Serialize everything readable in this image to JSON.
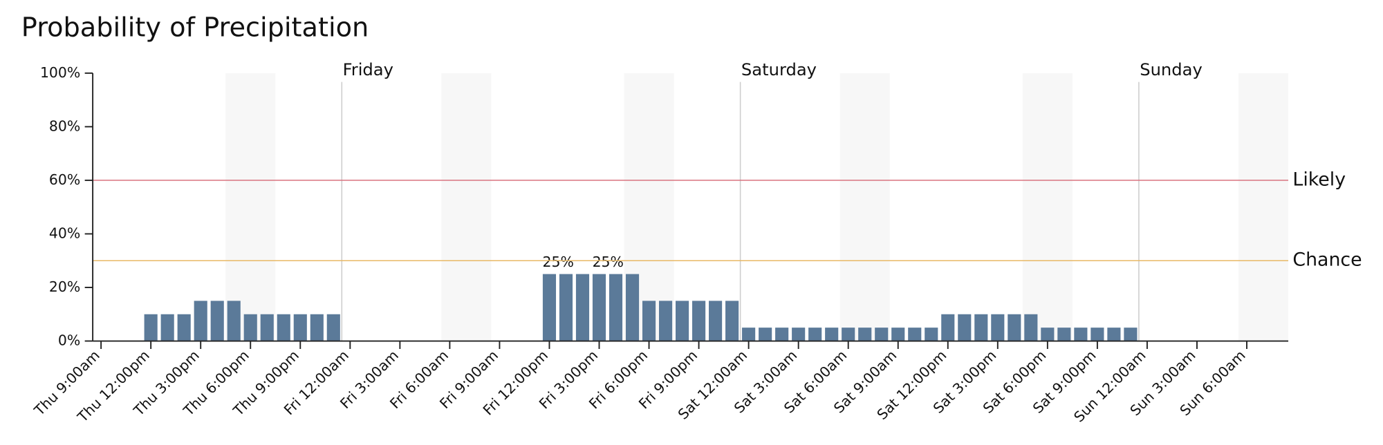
{
  "chart_data": {
    "type": "bar",
    "title": "Probability of Precipitation",
    "categories": [
      "Thu 9:00am",
      null,
      null,
      "Thu 12:00pm",
      null,
      null,
      "Thu 3:00pm",
      null,
      null,
      "Thu 6:00pm",
      null,
      null,
      "Thu 9:00pm",
      null,
      null,
      "Fri 12:00am",
      null,
      null,
      "Fri 3:00am",
      null,
      null,
      "Fri 6:00am",
      null,
      null,
      "Fri 9:00am",
      null,
      null,
      "Fri 12:00pm",
      null,
      null,
      "Fri 3:00pm",
      null,
      null,
      "Fri 6:00pm",
      null,
      null,
      "Fri 9:00pm",
      null,
      null,
      "Sat 12:00am",
      null,
      null,
      "Sat 3:00am",
      null,
      null,
      "Sat 6:00am",
      null,
      null,
      "Sat 9:00am",
      null,
      null,
      "Sat 12:00pm",
      null,
      null,
      "Sat 3:00pm",
      null,
      null,
      "Sat 6:00pm",
      null,
      null,
      "Sat 9:00pm",
      null,
      null,
      "Sun 12:00am",
      null,
      null,
      "Sun 3:00am",
      null,
      null,
      "Sun 6:00am",
      null,
      null
    ],
    "values": [
      0,
      0,
      0,
      10,
      10,
      10,
      15,
      15,
      15,
      10,
      10,
      10,
      10,
      10,
      10,
      0,
      0,
      0,
      0,
      0,
      0,
      0,
      0,
      0,
      0,
      0,
      0,
      25,
      25,
      25,
      25,
      25,
      25,
      15,
      15,
      15,
      15,
      15,
      15,
      5,
      5,
      5,
      5,
      5,
      5,
      5,
      5,
      5,
      5,
      5,
      5,
      10,
      10,
      10,
      10,
      10,
      10,
      5,
      5,
      5,
      5,
      5,
      5,
      0,
      0,
      0,
      0,
      0,
      0,
      0,
      0,
      0
    ],
    "value_labels": [
      null,
      null,
      null,
      null,
      null,
      null,
      null,
      null,
      null,
      null,
      null,
      null,
      null,
      null,
      null,
      null,
      null,
      null,
      null,
      null,
      null,
      null,
      null,
      null,
      null,
      null,
      null,
      "25%",
      null,
      null,
      "25%",
      null,
      null,
      null,
      null,
      null,
      null,
      null,
      null,
      null,
      null,
      null,
      null,
      null,
      null,
      null,
      null,
      null,
      null,
      null,
      null,
      null,
      null,
      null,
      null,
      null,
      null,
      null,
      null,
      null,
      null,
      null,
      null,
      null,
      null,
      null,
      null,
      null,
      null,
      null,
      null,
      null
    ],
    "color": "#5b7a99",
    "ylim": [
      0,
      100
    ],
    "yticks": [
      {
        "value": 0,
        "label": "0%"
      },
      {
        "value": 20,
        "label": "20%"
      },
      {
        "value": 40,
        "label": "40%"
      },
      {
        "value": 60,
        "label": "60%"
      },
      {
        "value": 80,
        "label": "80%"
      },
      {
        "value": 100,
        "label": "100%"
      }
    ],
    "thresholds": [
      {
        "label": "Likely",
        "value": 60,
        "color": "#d9737f"
      },
      {
        "label": "Chance",
        "value": 30,
        "color": "#e8b865"
      }
    ],
    "day_markers": [
      {
        "label": "Friday",
        "category": "Fri 12:00am"
      },
      {
        "label": "Saturday",
        "category": "Sat 12:00am"
      },
      {
        "label": "Sunday",
        "category": "Sun 12:00am"
      }
    ]
  }
}
